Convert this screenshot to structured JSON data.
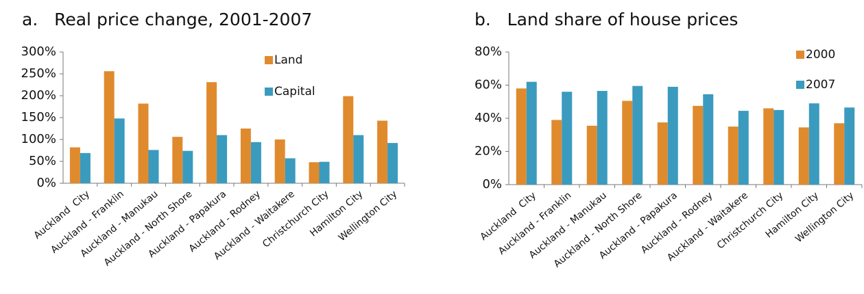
{
  "chart_data": [
    {
      "type": "bar",
      "title": "a.   Real price change, 2001-2007",
      "categories": [
        "Auckland  City",
        "Auckland - Franklin",
        "Auckland - Manukau",
        "Auckland - North Shore",
        "Auckland - Papakura",
        "Auckland - Rodney",
        "Auckland - Waitakere",
        "Christchurch City",
        "Hamilton City",
        "Wellington City"
      ],
      "series": [
        {
          "name": "Land",
          "color": "#e08a2e",
          "values": [
            82,
            256,
            182,
            106,
            231,
            125,
            100,
            48,
            199,
            143
          ]
        },
        {
          "name": "Capital",
          "color": "#3a9bbe",
          "values": [
            69,
            148,
            76,
            74,
            110,
            94,
            57,
            49,
            110,
            92
          ]
        }
      ],
      "ylim": [
        0,
        300
      ],
      "yticks": [
        {
          "value": 0,
          "label": "0%"
        },
        {
          "value": 50,
          "label": "50%"
        },
        {
          "value": 100,
          "label": "100%"
        },
        {
          "value": 150,
          "label": "150%"
        },
        {
          "value": 200,
          "label": "200%"
        },
        {
          "value": 250,
          "label": "250%"
        },
        {
          "value": 300,
          "label": "300%"
        }
      ]
    },
    {
      "type": "bar",
      "title": "b.   Land share of house prices",
      "categories": [
        "Auckland  City",
        "Auckland - Franklin",
        "Auckland - Manukau",
        "Auckland - North Shore",
        "Auckland - Papakura",
        "Auckland - Rodney",
        "Auckland - Waitakere",
        "Christchurch City",
        "Hamilton City",
        "Wellington City"
      ],
      "series": [
        {
          "name": "2000",
          "color": "#e08a2e",
          "values": [
            58,
            39,
            35.5,
            50.5,
            37.5,
            47.5,
            35,
            46,
            34.5,
            37
          ]
        },
        {
          "name": "2007",
          "color": "#3a9bbe",
          "values": [
            62,
            56,
            56.5,
            59.5,
            59,
            54.5,
            44.5,
            45,
            49,
            46.5
          ]
        }
      ],
      "ylim": [
        0,
        80
      ],
      "yticks": [
        {
          "value": 0,
          "label": "0%"
        },
        {
          "value": 20,
          "label": "20%"
        },
        {
          "value": 40,
          "label": "40%"
        },
        {
          "value": 60,
          "label": "60%"
        },
        {
          "value": 80,
          "label": "80%"
        }
      ]
    }
  ]
}
